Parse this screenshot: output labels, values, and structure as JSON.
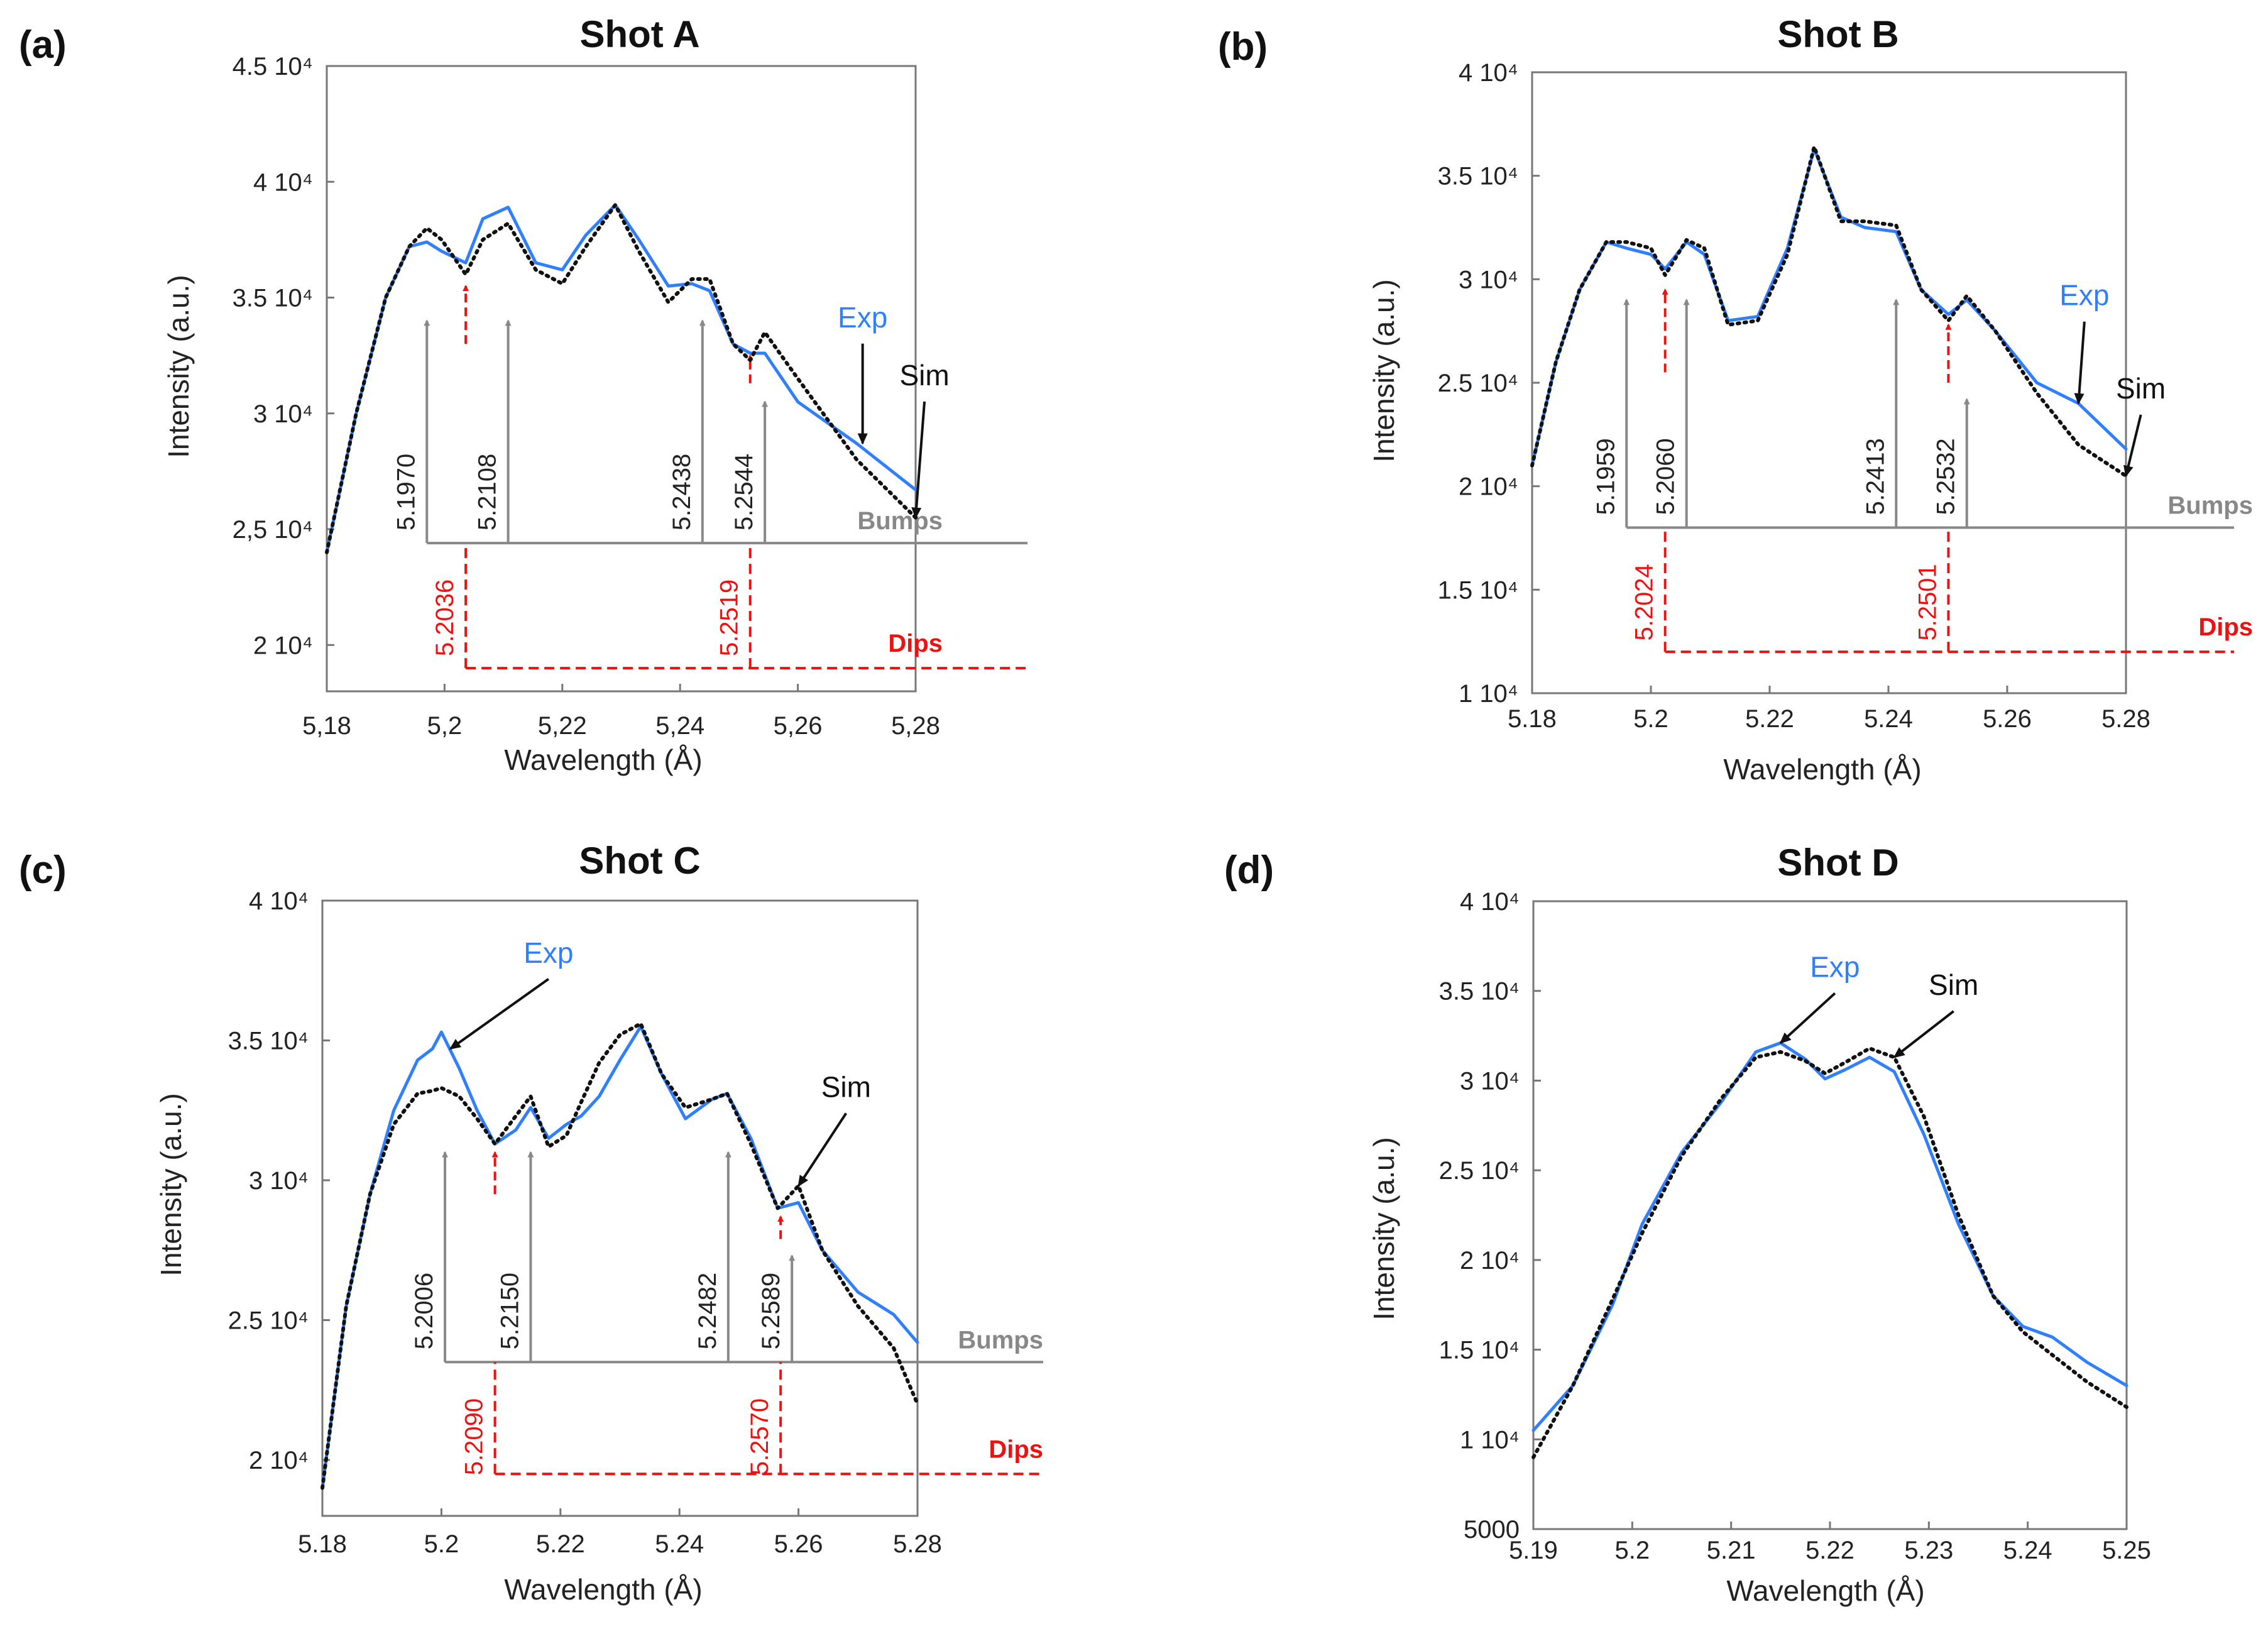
{
  "figure_caption": "",
  "chart_data": [
    {
      "panel": "(a)",
      "type": "line",
      "title": "Shot A",
      "xlabel": "Wavelength (Å)",
      "ylabel": "Intensity (a.u.)",
      "xlim": [
        5.18,
        5.28
      ],
      "ylim": [
        18000,
        45000
      ],
      "xticks": [
        5.18,
        5.2,
        5.22,
        5.24,
        5.26,
        5.28
      ],
      "xtick_labels": [
        "5,18",
        "5,2",
        "5,22",
        "5,24",
        "5,26",
        "5,28"
      ],
      "yticks": [
        20000,
        25000,
        30000,
        35000,
        40000,
        45000
      ],
      "ytick_labels": [
        "2 10⁴",
        "2,5 10⁴",
        "3 10⁴",
        "3.5 10⁴",
        "4 10⁴",
        "4.5 10⁴"
      ],
      "series": [
        {
          "name": "Exp",
          "color": "#2f7fff",
          "style": "solid",
          "x": [
            5.18,
            5.185,
            5.19,
            5.194,
            5.197,
            5.1995,
            5.2036,
            5.2065,
            5.2108,
            5.2155,
            5.22,
            5.224,
            5.229,
            5.233,
            5.238,
            5.242,
            5.245,
            5.249,
            5.2519,
            5.2544,
            5.26,
            5.27,
            5.28
          ],
          "y": [
            24000,
            30000,
            35000,
            37200,
            37400,
            37000,
            36500,
            38400,
            38900,
            36500,
            36200,
            37700,
            39000,
            37500,
            35500,
            35600,
            35300,
            33000,
            32600,
            32600,
            30500,
            28700,
            26700
          ]
        },
        {
          "name": "Sim",
          "color": "#111111",
          "style": "dotted",
          "x": [
            5.18,
            5.185,
            5.19,
            5.194,
            5.197,
            5.1995,
            5.2036,
            5.2065,
            5.2108,
            5.2155,
            5.22,
            5.224,
            5.229,
            5.233,
            5.238,
            5.242,
            5.245,
            5.249,
            5.2519,
            5.2544,
            5.26,
            5.27,
            5.28
          ],
          "y": [
            24000,
            30000,
            35000,
            37200,
            38000,
            37500,
            36000,
            37500,
            38200,
            36200,
            35600,
            37200,
            39000,
            37000,
            34800,
            35800,
            35800,
            33000,
            32300,
            33500,
            31500,
            28000,
            25500
          ]
        }
      ],
      "bumps": {
        "label": "Bumps",
        "color": "#888888",
        "baseline_y": 24400,
        "x": [
          5.197,
          5.2108,
          5.2438,
          5.2544
        ],
        "labels": [
          "5.1970",
          "5.2108",
          "5.2438",
          "5.2544"
        ],
        "tips": [
          34000,
          34000,
          34000,
          30500
        ]
      },
      "dips": {
        "label": "Dips",
        "color": "#ee1111",
        "baseline_y": 19000,
        "x": [
          5.2036,
          5.2519
        ],
        "labels": [
          "5.2036",
          "5.2519"
        ],
        "tips": [
          35500,
          32500
        ],
        "ends": [
          33000,
          31300
        ]
      },
      "annotations": [
        {
          "text": "Exp",
          "color": "#2f7fff",
          "x": 5.271,
          "y": 33500,
          "target_x": 5.271,
          "target_y": 28700
        },
        {
          "text": "Sim",
          "color": "#111111",
          "x": 5.2815,
          "y": 31000,
          "target_x": 5.28,
          "target_y": 25500
        }
      ]
    },
    {
      "panel": "(b)",
      "type": "line",
      "title": "Shot B",
      "xlabel": "Wavelength (Å)",
      "ylabel": "Intensity (a.u.)",
      "xlim": [
        5.18,
        5.28
      ],
      "ylim": [
        10000,
        40000
      ],
      "xticks": [
        5.18,
        5.2,
        5.22,
        5.24,
        5.26,
        5.28
      ],
      "xtick_labels": [
        "5.18",
        "5.2",
        "5.22",
        "5.24",
        "5.26",
        "5.28"
      ],
      "yticks": [
        10000,
        15000,
        20000,
        25000,
        30000,
        35000,
        40000
      ],
      "ytick_labels": [
        "1 10⁴",
        "1.5 10⁴",
        "2 10⁴",
        "2.5 10⁴",
        "3 10⁴",
        "3.5 10⁴",
        "4 10⁴"
      ],
      "series": [
        {
          "name": "Exp",
          "color": "#2f7fff",
          "style": "solid",
          "x": [
            5.18,
            5.184,
            5.188,
            5.1925,
            5.1959,
            5.2,
            5.2024,
            5.206,
            5.209,
            5.213,
            5.218,
            5.223,
            5.2275,
            5.232,
            5.236,
            5.2413,
            5.2455,
            5.2501,
            5.2532,
            5.258,
            5.265,
            5.272,
            5.28
          ],
          "y": [
            21000,
            26000,
            29500,
            31800,
            31500,
            31200,
            30500,
            31800,
            31200,
            28000,
            28200,
            31500,
            36300,
            33000,
            32500,
            32300,
            29500,
            28300,
            29000,
            27500,
            25000,
            24000,
            21800
          ]
        },
        {
          "name": "Sim",
          "color": "#111111",
          "style": "dotted",
          "x": [
            5.18,
            5.184,
            5.188,
            5.1925,
            5.1959,
            5.2,
            5.2024,
            5.206,
            5.209,
            5.213,
            5.218,
            5.223,
            5.2275,
            5.232,
            5.236,
            5.2413,
            5.2455,
            5.2501,
            5.2532,
            5.258,
            5.265,
            5.272,
            5.28
          ],
          "y": [
            21000,
            26000,
            29500,
            31800,
            31800,
            31500,
            30200,
            31900,
            31500,
            27800,
            28000,
            31200,
            36400,
            32800,
            32800,
            32600,
            29500,
            28000,
            29200,
            27500,
            24500,
            22000,
            20500
          ]
        }
      ],
      "bumps": {
        "label": "Bumps",
        "color": "#888888",
        "baseline_y": 18000,
        "x": [
          5.1959,
          5.206,
          5.2413,
          5.2532
        ],
        "labels": [
          "5.1959",
          "5.2060",
          "5.2413",
          "5.2532"
        ],
        "tips": [
          29000,
          29000,
          29000,
          24200
        ]
      },
      "dips": {
        "label": "Dips",
        "color": "#ee1111",
        "baseline_y": 12000,
        "x": [
          5.2024,
          5.2501
        ],
        "labels": [
          "5.2024",
          "5.2501"
        ],
        "tips": [
          29500,
          27800
        ],
        "ends": [
          25500,
          25000
        ]
      },
      "annotations": [
        {
          "text": "Exp",
          "color": "#2f7fff",
          "x": 5.273,
          "y": 28500,
          "target_x": 5.272,
          "target_y": 24000
        },
        {
          "text": "Sim",
          "color": "#111111",
          "x": 5.2825,
          "y": 24000,
          "target_x": 5.28,
          "target_y": 20500
        }
      ]
    },
    {
      "panel": "(c)",
      "type": "line",
      "title": "Shot C",
      "xlabel": "Wavelength (Å)",
      "ylabel": "Intensity (a.u.)",
      "xlim": [
        5.18,
        5.28
      ],
      "ylim": [
        18000,
        40000
      ],
      "xticks": [
        5.18,
        5.2,
        5.22,
        5.24,
        5.26,
        5.28
      ],
      "xtick_labels": [
        "5.18",
        "5.2",
        "5.22",
        "5.24",
        "5.26",
        "5.28"
      ],
      "yticks": [
        20000,
        25000,
        30000,
        35000,
        40000
      ],
      "ytick_labels": [
        "2 10⁴",
        "2.5 10⁴",
        "3 10⁴",
        "3.5 10⁴",
        "4 10⁴"
      ],
      "series": [
        {
          "name": "Exp",
          "color": "#2f7fff",
          "style": "solid",
          "x": [
            5.18,
            5.184,
            5.188,
            5.192,
            5.196,
            5.1985,
            5.2,
            5.203,
            5.206,
            5.209,
            5.2125,
            5.215,
            5.218,
            5.221,
            5.2235,
            5.2265,
            5.23,
            5.2335,
            5.237,
            5.241,
            5.2455,
            5.248,
            5.252,
            5.2565,
            5.26,
            5.264,
            5.27,
            5.276,
            5.28
          ],
          "y": [
            19000,
            25500,
            29500,
            32500,
            34300,
            34700,
            35300,
            34000,
            32500,
            31300,
            31800,
            32600,
            31500,
            32000,
            32300,
            33000,
            34300,
            35500,
            33800,
            32200,
            32900,
            33100,
            31500,
            29000,
            29200,
            27500,
            26000,
            25200,
            24200
          ]
        },
        {
          "name": "Sim",
          "color": "#111111",
          "style": "dotted",
          "x": [
            5.18,
            5.184,
            5.188,
            5.192,
            5.196,
            5.1985,
            5.2,
            5.203,
            5.206,
            5.209,
            5.2125,
            5.215,
            5.218,
            5.221,
            5.2235,
            5.2265,
            5.23,
            5.2335,
            5.237,
            5.241,
            5.2455,
            5.248,
            5.252,
            5.2565,
            5.26,
            5.264,
            5.27,
            5.276,
            5.28
          ],
          "y": [
            19000,
            25500,
            29500,
            32000,
            33100,
            33200,
            33300,
            33000,
            32200,
            31300,
            32300,
            33000,
            31200,
            31600,
            32800,
            34200,
            35200,
            35600,
            33800,
            32600,
            32900,
            33100,
            31300,
            29000,
            29800,
            27500,
            25500,
            24000,
            22000
          ]
        }
      ],
      "bumps": {
        "label": "Bumps",
        "color": "#888888",
        "baseline_y": 23500,
        "x": [
          5.2006,
          5.215,
          5.2482,
          5.2589
        ],
        "labels": [
          "5.2006",
          "5.2150",
          "5.2482",
          "5.2589"
        ],
        "tips": [
          31000,
          31000,
          31000,
          27300
        ]
      },
      "dips": {
        "label": "Dips",
        "color": "#ee1111",
        "baseline_y": 19500,
        "x": [
          5.209,
          5.257
        ],
        "labels": [
          "5.2090",
          "5.2570"
        ],
        "tips": [
          31000,
          28700
        ],
        "ends": [
          29500,
          27900
        ]
      },
      "annotations": [
        {
          "text": "Exp",
          "color": "#2f7fff",
          "x": 5.218,
          "y": 37600,
          "target_x": 5.2015,
          "target_y": 34700
        },
        {
          "text": "Sim",
          "color": "#111111",
          "x": 5.268,
          "y": 32800,
          "target_x": 5.26,
          "target_y": 29800
        }
      ]
    },
    {
      "panel": "(d)",
      "type": "line",
      "title": "Shot D",
      "xlabel": "Wavelength (Å)",
      "ylabel": "Intensity (a.u.)",
      "xlim": [
        5.19,
        5.25
      ],
      "ylim": [
        5000,
        40000
      ],
      "xticks": [
        5.19,
        5.2,
        5.21,
        5.22,
        5.23,
        5.24,
        5.25
      ],
      "xtick_labels": [
        "5.19",
        "5.2",
        "5.21",
        "5.22",
        "5.23",
        "5.24",
        "5.25"
      ],
      "yticks": [
        5000,
        10000,
        15000,
        20000,
        25000,
        30000,
        35000,
        40000
      ],
      "ytick_labels": [
        "5000",
        "1 10⁴",
        "1.5 10⁴",
        "2 10⁴",
        "2.5 10⁴",
        "3 10⁴",
        "3.5 10⁴",
        "4 10⁴"
      ],
      "series": [
        {
          "name": "Exp",
          "color": "#2f7fff",
          "style": "solid",
          "x": [
            5.19,
            5.194,
            5.198,
            5.201,
            5.205,
            5.209,
            5.2125,
            5.215,
            5.2175,
            5.2195,
            5.2215,
            5.224,
            5.2265,
            5.2295,
            5.233,
            5.2365,
            5.2395,
            5.2425,
            5.246,
            5.25
          ],
          "y": [
            10500,
            13000,
            17500,
            22000,
            26000,
            28800,
            31600,
            32100,
            31200,
            30100,
            30600,
            31300,
            30500,
            27000,
            22000,
            18000,
            16300,
            15700,
            14300,
            13000
          ]
        },
        {
          "name": "Sim",
          "color": "#111111",
          "style": "dotted",
          "x": [
            5.19,
            5.194,
            5.198,
            5.201,
            5.205,
            5.209,
            5.2125,
            5.215,
            5.2175,
            5.2195,
            5.2215,
            5.224,
            5.2265,
            5.2295,
            5.233,
            5.2365,
            5.2395,
            5.2425,
            5.246,
            5.25
          ],
          "y": [
            9000,
            13000,
            17800,
            21500,
            25800,
            29000,
            31300,
            31600,
            31100,
            30400,
            31000,
            31800,
            31300,
            28000,
            22500,
            18000,
            16000,
            14700,
            13200,
            11800
          ]
        }
      ],
      "annotations": [
        {
          "text": "Exp",
          "color": "#2f7fff",
          "x": 5.2205,
          "y": 35500,
          "target_x": 5.215,
          "target_y": 32100
        },
        {
          "text": "Sim",
          "color": "#111111",
          "x": 5.2325,
          "y": 34500,
          "target_x": 5.2265,
          "target_y": 31300
        }
      ]
    }
  ]
}
